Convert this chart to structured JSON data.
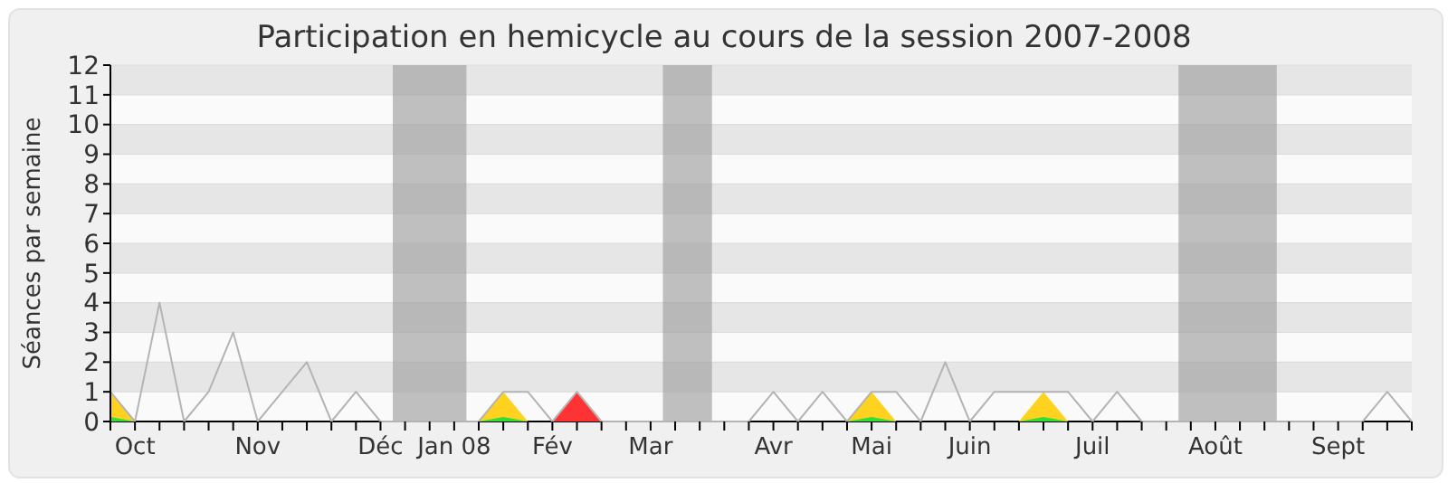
{
  "chart_data": {
    "type": "line",
    "title": "Participation en hemicycle au cours de la session 2007-2008",
    "ylabel": "Séances par semaine",
    "categories": [
      null,
      "Oct",
      null,
      null,
      null,
      null,
      "Nov",
      null,
      null,
      null,
      null,
      "Déc",
      null,
      null,
      "Jan 08",
      null,
      null,
      null,
      "Fév",
      null,
      null,
      null,
      "Mar",
      null,
      null,
      null,
      null,
      "Avr",
      null,
      null,
      null,
      "Mai",
      null,
      null,
      null,
      "Juin",
      null,
      null,
      null,
      null,
      "Juil",
      null,
      null,
      null,
      null,
      "Août",
      null,
      null,
      null,
      null,
      "Sept",
      null,
      null,
      null
    ],
    "series": [
      {
        "type": "area",
        "color": "#ff3333",
        "values": [
          null,
          null,
          null,
          null,
          null,
          null,
          null,
          null,
          null,
          null,
          null,
          null,
          null,
          null,
          null,
          null,
          null,
          null,
          0,
          1,
          0,
          null,
          null,
          null,
          null,
          null,
          null,
          null,
          null,
          null,
          null,
          null,
          null,
          null,
          null,
          null,
          null,
          null,
          null,
          null,
          null,
          null,
          null,
          null,
          null,
          null,
          null,
          null,
          null,
          null,
          null,
          null,
          null,
          null
        ]
      },
      {
        "type": "area",
        "color": "#ffd21f",
        "values": [
          1,
          0,
          null,
          null,
          null,
          null,
          null,
          null,
          null,
          null,
          null,
          null,
          null,
          null,
          null,
          0,
          1,
          0,
          null,
          null,
          null,
          null,
          null,
          null,
          null,
          null,
          null,
          null,
          null,
          null,
          0,
          1,
          0,
          null,
          null,
          null,
          null,
          0,
          1,
          0,
          null,
          null,
          null,
          null,
          null,
          null,
          null,
          null,
          null,
          null,
          null,
          null,
          null,
          null
        ]
      },
      {
        "type": "area",
        "color": "#33dd33",
        "values": [
          0.15,
          0,
          null,
          null,
          null,
          null,
          null,
          null,
          null,
          null,
          null,
          null,
          null,
          null,
          null,
          0,
          0.15,
          0,
          null,
          null,
          null,
          null,
          null,
          null,
          null,
          null,
          null,
          null,
          null,
          null,
          0,
          0.15,
          0,
          null,
          null,
          null,
          null,
          0,
          0.15,
          0,
          null,
          null,
          null,
          null,
          null,
          null,
          null,
          null,
          null,
          null,
          null,
          null,
          null,
          null
        ]
      },
      {
        "color": "#b4b4b4",
        "values": [
          1,
          0,
          4,
          0,
          1,
          3,
          0,
          1,
          2,
          0,
          1,
          0,
          0,
          0,
          0,
          0,
          1,
          1,
          0,
          1,
          0,
          0,
          0,
          0,
          0,
          0,
          0,
          1,
          0,
          1,
          0,
          1,
          1,
          0,
          2,
          0,
          1,
          1,
          1,
          1,
          0,
          1,
          0,
          0,
          0,
          0,
          0,
          0,
          0,
          0,
          0,
          0,
          1,
          0
        ]
      }
    ],
    "ylim": [
      0,
      12
    ],
    "yticks": [
      0,
      1,
      2,
      3,
      4,
      5,
      6,
      7,
      8,
      9,
      10,
      11,
      12
    ],
    "grid": "y"
  }
}
